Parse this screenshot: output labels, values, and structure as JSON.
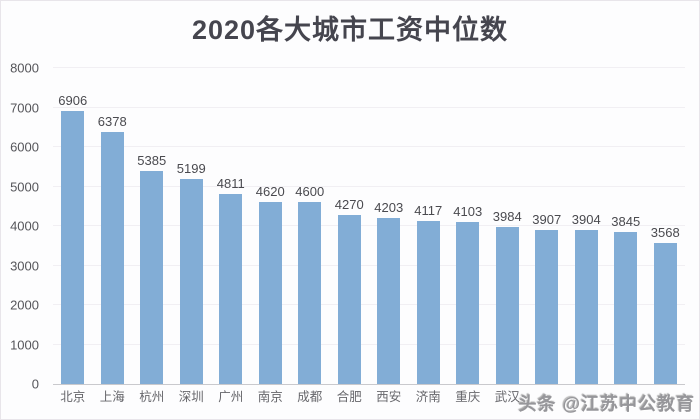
{
  "title": "2020各大城市工资中位数",
  "chart_data": {
    "type": "bar",
    "title": "2020各大城市工资中位数",
    "categories": [
      "北京",
      "上海",
      "杭州",
      "深圳",
      "广州",
      "南京",
      "成都",
      "合肥",
      "西安",
      "济南",
      "重庆",
      "武汉",
      "",
      "",
      "",
      ""
    ],
    "values": [
      6906,
      6378,
      5385,
      5199,
      4811,
      4620,
      4600,
      4270,
      4203,
      4117,
      4103,
      3984,
      3907,
      3904,
      3845,
      3568
    ],
    "xlabel": "",
    "ylabel": "",
    "ylim": [
      0,
      8000
    ],
    "yticks": [
      0,
      1000,
      2000,
      3000,
      4000,
      5000,
      6000,
      7000,
      8000
    ],
    "grid": true,
    "legend": "none",
    "value_labels": true
  },
  "watermark": {
    "text": "头条 @江苏中公教育"
  },
  "colors": {
    "title": "#45454e",
    "bar": "#82add6",
    "value_label": "#4a4a4f",
    "y_tick_label": "#55555a",
    "x_tick_label": "#66666b",
    "gridline": "#f1eff3",
    "axis_line": "#c9c9cd",
    "background": "#fdfdfe",
    "watermark": "#96969a"
  }
}
